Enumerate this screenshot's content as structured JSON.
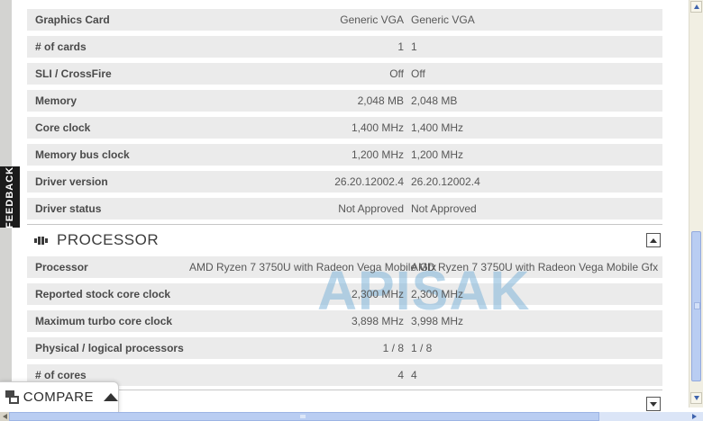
{
  "watermark": "APISAK",
  "feedback_tab": {
    "label": "FEEDBACK"
  },
  "compare_button": {
    "label": "COMPARE"
  },
  "sections": [
    {
      "rows": [
        {
          "label": "Graphics Card",
          "value1": "Generic VGA",
          "value2": "Generic VGA"
        },
        {
          "label": "# of cards",
          "value1": "1",
          "value2": "1"
        },
        {
          "label": "SLI / CrossFire",
          "value1": "Off",
          "value2": "Off"
        },
        {
          "label": "Memory",
          "value1": "2,048 MB",
          "value2": "2,048 MB"
        },
        {
          "label": "Core clock",
          "value1": "1,400 MHz",
          "value2": "1,400 MHz"
        },
        {
          "label": "Memory bus clock",
          "value1": "1,200 MHz",
          "value2": "1,200 MHz"
        },
        {
          "label": "Driver version",
          "value1": "26.20.12002.4",
          "value2": "26.20.12002.4"
        },
        {
          "label": "Driver status",
          "value1": "Not Approved",
          "value2": "Not Approved"
        }
      ]
    },
    {
      "title": "PROCESSOR",
      "rows": [
        {
          "label": "Processor",
          "value1": "AMD Ryzen 7 3750U with Radeon Vega Mobile Gfx",
          "value2": "AMD Ryzen 7 3750U with Radeon Vega Mobile Gfx"
        },
        {
          "label": "Reported stock core clock",
          "value1": "2,300 MHz",
          "value2": "2,300 MHz"
        },
        {
          "label": "Maximum turbo core clock",
          "value1": "3,898 MHz",
          "value2": "3,998 MHz"
        },
        {
          "label": "Physical / logical processors",
          "value1": "1 / 8",
          "value2": "1 / 8"
        },
        {
          "label": "# of cores",
          "value1": "4",
          "value2": "4"
        }
      ]
    }
  ],
  "colors": {
    "row_background": "#ebebeb",
    "watermark_blue": "#80b4d8",
    "feedback_tab_background": "#1b1b1b",
    "scrollbar_thumb_blue": "#b9cdf2",
    "scrollbar_track_cream": "#f1efe3"
  }
}
